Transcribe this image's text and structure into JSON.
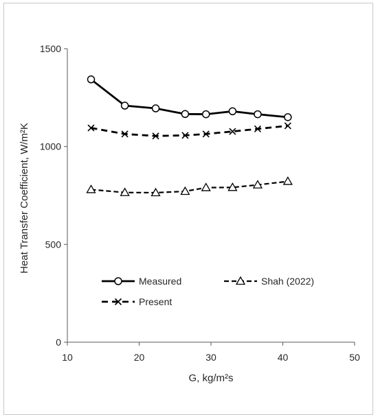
{
  "chart_data": {
    "type": "line",
    "title": "",
    "xlabel": "G, kg/m²s",
    "ylabel": "Heat Transfer Coefficient, W/m²K",
    "xlim": [
      10,
      50
    ],
    "ylim": [
      0,
      1500
    ],
    "xticks": [
      10,
      20,
      30,
      40,
      50
    ],
    "yticks": [
      0,
      500,
      1000,
      1500
    ],
    "grid": false,
    "legend_position": "lower-middle, inside plot",
    "series": [
      {
        "name": "Measured",
        "marker": "circle",
        "line_style": "solid",
        "color": "#000000",
        "x": [
          13.3,
          18.0,
          22.3,
          26.4,
          29.3,
          33.0,
          36.5,
          40.7
        ],
        "y": [
          1343,
          1209,
          1195,
          1166,
          1165,
          1180,
          1165,
          1150
        ]
      },
      {
        "name": "Shah (2022)",
        "marker": "triangle",
        "line_style": "dashed",
        "color": "#000000",
        "x": [
          13.3,
          18.0,
          22.3,
          26.4,
          29.3,
          33.0,
          36.5,
          40.7
        ],
        "y": [
          780,
          765,
          764,
          771,
          790,
          791,
          804,
          822
        ]
      },
      {
        "name": "Present",
        "marker": "x",
        "line_style": "dashed",
        "color": "#000000",
        "x": [
          13.3,
          18.0,
          22.3,
          26.4,
          29.3,
          33.0,
          36.5,
          40.7
        ],
        "y": [
          1095,
          1064,
          1054,
          1057,
          1064,
          1077,
          1090,
          1106
        ]
      }
    ]
  }
}
